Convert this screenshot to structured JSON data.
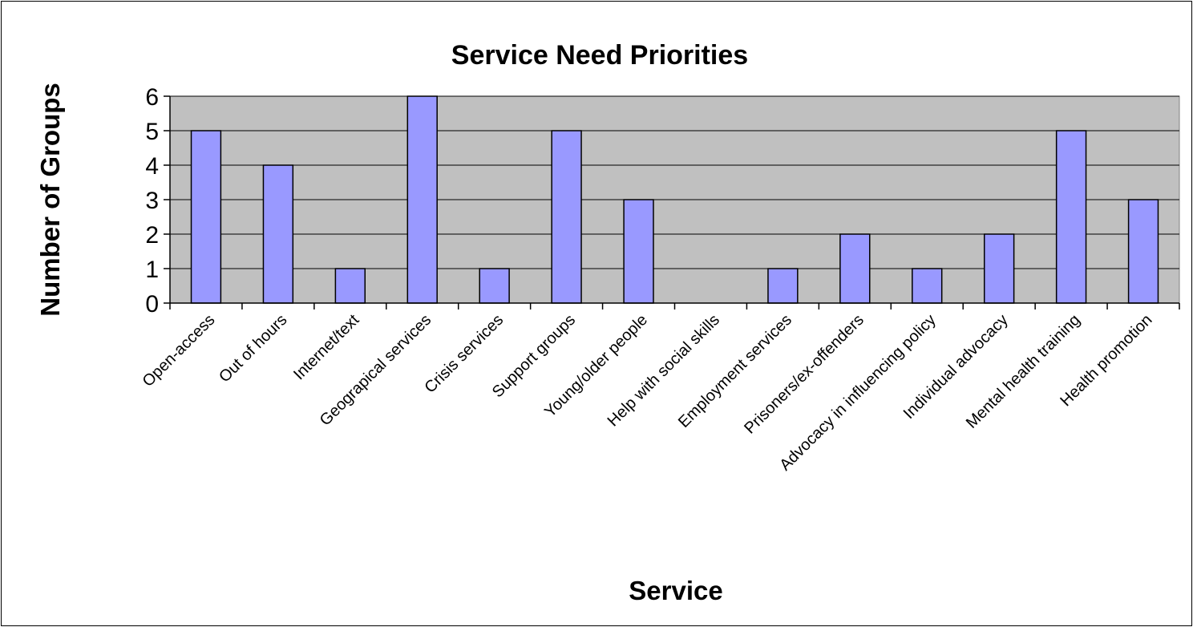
{
  "chart_data": {
    "type": "bar",
    "title": "Service Need Priorities",
    "xlabel": "Service",
    "ylabel": "Number of Groups",
    "ylim": [
      0,
      6
    ],
    "yticks": [
      "0",
      "1",
      "2",
      "3",
      "4",
      "5",
      "6"
    ],
    "grid": true,
    "legend": "none",
    "categories": [
      "Open-access",
      "Out of hours",
      "Internet/text",
      "Geograpical services",
      "Crisis services",
      "Support groups",
      "Young/older people",
      "Help with social skills",
      "Employment services",
      "Prisoners/ex-offenders",
      "Advocacy in influencing policy",
      "Individual advocacy",
      "Mental health training",
      "Health promotion"
    ],
    "values": [
      5,
      4,
      1,
      6,
      1,
      5,
      3,
      0,
      1,
      2,
      1,
      2,
      5,
      3
    ],
    "colors": {
      "bar": "#9999ff",
      "plot_background": "#c0c0c0",
      "gridline": "#000000",
      "axis": "#000000"
    }
  }
}
